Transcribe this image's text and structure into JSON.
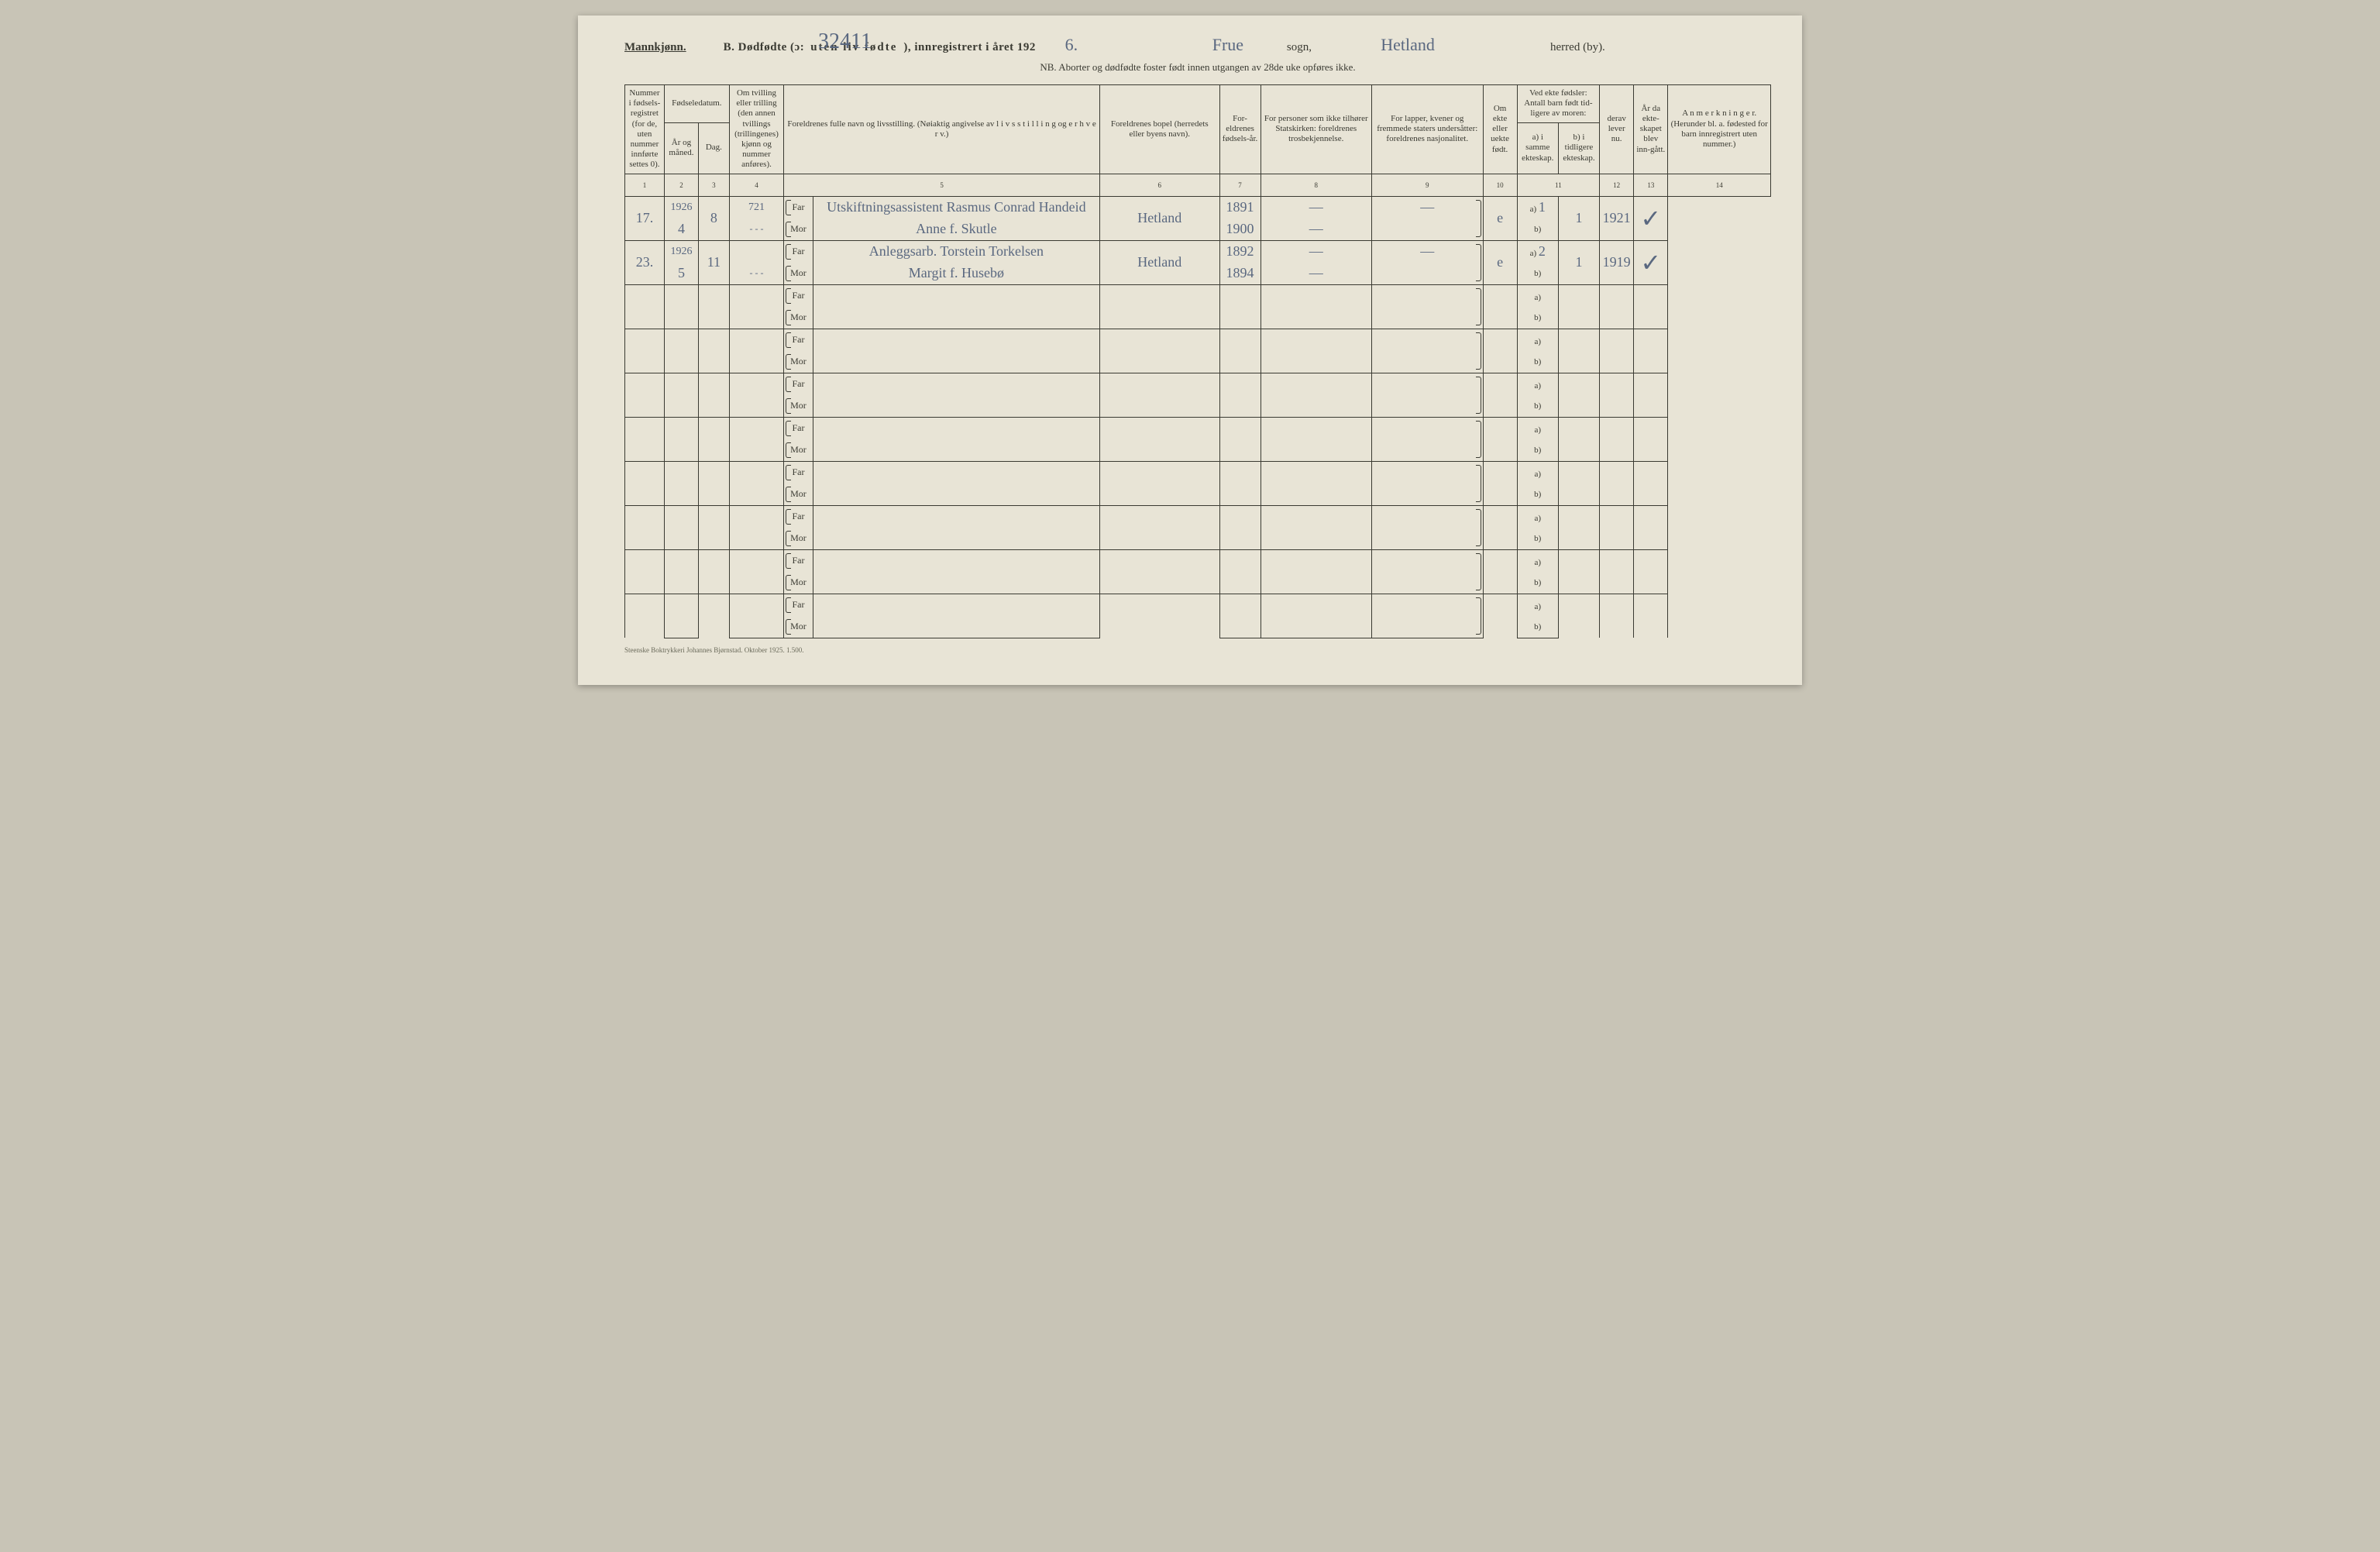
{
  "header": {
    "gender": "Mannkjønn.",
    "section_label": "B.  Dødfødte (ɔ:",
    "section_spaced": "uten liv fødte",
    "section_tail": "), innregistrert i året 192",
    "year_last_digit": "6.",
    "sogn_value": "Frue",
    "sogn_label": "sogn,",
    "herred_value": "Hetland",
    "herred_label": "herred (by).",
    "top_number": "32411"
  },
  "subnote": "NB.  Aborter og dødfødte foster født innen utgangen av 28de uke opføres ikke.",
  "columns": {
    "c1": "Nummer i fødsels-registret (for de, uten nummer innførte settes 0).",
    "c2_group": "Fødseledatum.",
    "c2": "År og måned.",
    "c3": "Dag.",
    "c4": "Om tvilling eller trilling (den annen tvillings (trillingenes) kjønn og nummer anføres).",
    "c5": "Foreldrenes fulle navn og livsstilling. (Nøiaktig angivelse av l i v s s t i l l i n g  og e r h v e r v.)",
    "c6": "Foreldrenes bopel (herredets eller byens navn).",
    "c7": "For-eldrenes fødsels-år.",
    "c8": "For personer som ikke tilhører Statskirken: foreldrenes trosbekjennelse.",
    "c9": "For lapper, kvener og fremmede staters undersåtter: foreldrenes nasjonalitet.",
    "c10": "Om ekte eller uekte født.",
    "c11_group": "Ved ekte fødsler: Antall barn født tid-ligere av moren:",
    "c11a": "a) i samme ekteskap.",
    "c11b": "b) i tidligere ekteskap.",
    "c12": "derav lever nu.",
    "c13": "År da ekte-skapet blev inn-gått.",
    "c14": "A n m e r k n i n g e r. (Herunder bl. a. fødested for barn innregistrert uten nummer.)"
  },
  "colnums": [
    "1",
    "2",
    "3",
    "4",
    "5",
    "6",
    "7",
    "8",
    "9",
    "10",
    "11",
    "12",
    "13",
    "14"
  ],
  "far_label": "Far",
  "mor_label": "Mor",
  "ab_a": "a)",
  "ab_b": "b)",
  "rows": [
    {
      "num": "17.",
      "year_month_top": "1926",
      "year_month_bot": "4",
      "day": "8",
      "twin": "721",
      "twin_sub": "- - -",
      "far_name": "Utskiftningsassistent Rasmus Conrad Handeid",
      "mor_name": "Anne f. Skutle",
      "bopel": "Hetland",
      "far_year": "1891",
      "mor_year": "1900",
      "c8_far": "—",
      "c8_mor": "—",
      "c9_far": "—",
      "c9_mor": "",
      "ekte": "e",
      "a_val": "1",
      "lever": "1",
      "aar_ekt": "1921",
      "anm": "✓"
    },
    {
      "num": "23.",
      "year_month_top": "1926",
      "year_month_bot": "5",
      "day": "11",
      "twin": "",
      "twin_sub": "- - -",
      "far_name": "Anleggsarb. Torstein Torkelsen",
      "mor_name": "Margit f. Husebø",
      "bopel": "Hetland",
      "far_year": "1892",
      "mor_year": "1894",
      "c8_far": "—",
      "c8_mor": "—",
      "c9_far": "—",
      "c9_mor": "",
      "ekte": "e",
      "a_val": "2",
      "lever": "1",
      "aar_ekt": "1919",
      "anm": "✓"
    }
  ],
  "empty_row_count": 8,
  "footer": "Steenske Boktrykkeri Johannes Bjørnstad.   Oktober 1925.   1.500."
}
